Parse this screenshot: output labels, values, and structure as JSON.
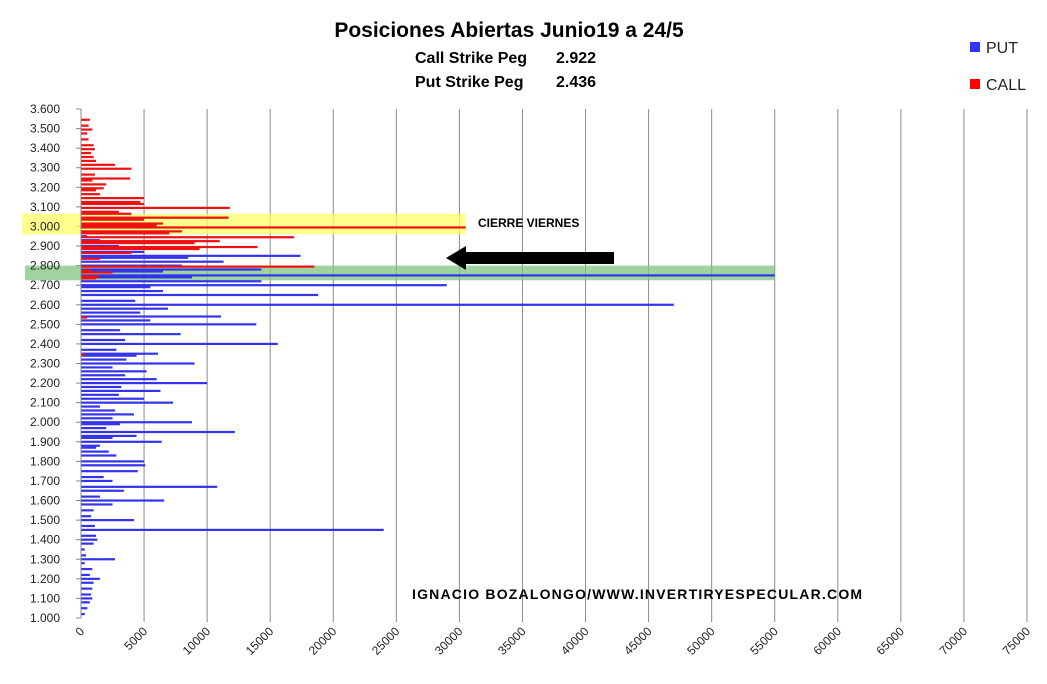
{
  "chart_data": {
    "type": "bar",
    "orientation": "horizontal",
    "title": "Posiciones Abiertas Junio19 a 24/5",
    "subtitle_lines": [
      {
        "label": "Call Strike Peg",
        "value": "2.922"
      },
      {
        "label": "Put Strike Peg",
        "value": "2.436"
      }
    ],
    "legend": {
      "position": "top-right",
      "entries": [
        {
          "name": "PUT",
          "color": "#3333ff"
        },
        {
          "name": "CALL",
          "color": "#ff0000"
        }
      ]
    },
    "ylim": [
      1.0,
      3.6
    ],
    "xlim": [
      0,
      75000
    ],
    "y_ticks": [
      "1.000",
      "1.100",
      "1.200",
      "1.300",
      "1.400",
      "1.500",
      "1.600",
      "1.700",
      "1.800",
      "1.900",
      "2.000",
      "2.100",
      "2.200",
      "2.300",
      "2.400",
      "2.500",
      "2.600",
      "2.700",
      "2.800",
      "2.900",
      "3.000",
      "3.100",
      "3.200",
      "3.300",
      "3.400",
      "3.500",
      "3.600"
    ],
    "x_ticks": [
      0,
      5000,
      10000,
      15000,
      20000,
      25000,
      30000,
      35000,
      40000,
      45000,
      50000,
      55000,
      60000,
      65000,
      70000,
      75000
    ],
    "grid": "vertical",
    "series_fields": [
      "strike",
      "put",
      "call"
    ],
    "data": [
      [
        1.02,
        300,
        0
      ],
      [
        1.05,
        500,
        0
      ],
      [
        1.08,
        700,
        0
      ],
      [
        1.1,
        900,
        0
      ],
      [
        1.12,
        800,
        0
      ],
      [
        1.15,
        900,
        0
      ],
      [
        1.18,
        1000,
        0
      ],
      [
        1.2,
        1500,
        0
      ],
      [
        1.22,
        700,
        0
      ],
      [
        1.25,
        900,
        0
      ],
      [
        1.28,
        300,
        0
      ],
      [
        1.3,
        2700,
        0
      ],
      [
        1.32,
        400,
        0
      ],
      [
        1.35,
        300,
        0
      ],
      [
        1.38,
        1000,
        0
      ],
      [
        1.4,
        1300,
        0
      ],
      [
        1.42,
        1200,
        0
      ],
      [
        1.45,
        24000,
        0
      ],
      [
        1.47,
        1100,
        0
      ],
      [
        1.5,
        4200,
        0
      ],
      [
        1.52,
        800,
        0
      ],
      [
        1.55,
        1000,
        0
      ],
      [
        1.58,
        2500,
        0
      ],
      [
        1.6,
        6600,
        0
      ],
      [
        1.62,
        1500,
        0
      ],
      [
        1.65,
        3400,
        0
      ],
      [
        1.67,
        10800,
        0
      ],
      [
        1.7,
        2500,
        0
      ],
      [
        1.72,
        1800,
        0
      ],
      [
        1.75,
        4500,
        0
      ],
      [
        1.78,
        5100,
        0
      ],
      [
        1.8,
        5000,
        0
      ],
      [
        1.83,
        2800,
        0
      ],
      [
        1.85,
        2200,
        0
      ],
      [
        1.87,
        1200,
        0
      ],
      [
        1.88,
        1500,
        0
      ],
      [
        1.9,
        6400,
        0
      ],
      [
        1.92,
        2500,
        0
      ],
      [
        1.93,
        4400,
        0
      ],
      [
        1.95,
        12200,
        0
      ],
      [
        1.97,
        2000,
        0
      ],
      [
        1.99,
        3100,
        0
      ],
      [
        2.0,
        8800,
        0
      ],
      [
        2.02,
        2500,
        0
      ],
      [
        2.04,
        4200,
        0
      ],
      [
        2.06,
        2700,
        0
      ],
      [
        2.08,
        1500,
        0
      ],
      [
        2.1,
        7300,
        0
      ],
      [
        2.12,
        5000,
        0
      ],
      [
        2.14,
        3000,
        0
      ],
      [
        2.16,
        6300,
        0
      ],
      [
        2.18,
        3200,
        0
      ],
      [
        2.2,
        10000,
        0
      ],
      [
        2.22,
        6000,
        0
      ],
      [
        2.24,
        3500,
        0
      ],
      [
        2.26,
        5200,
        0
      ],
      [
        2.28,
        2500,
        0
      ],
      [
        2.3,
        9000,
        0
      ],
      [
        2.32,
        3600,
        0
      ],
      [
        2.34,
        4400,
        0
      ],
      [
        2.35,
        6100,
        300
      ],
      [
        2.37,
        2800,
        0
      ],
      [
        2.4,
        15600,
        0
      ],
      [
        2.42,
        3500,
        0
      ],
      [
        2.45,
        7900,
        0
      ],
      [
        2.47,
        3100,
        0
      ],
      [
        2.5,
        13900,
        0
      ],
      [
        2.52,
        5500,
        0
      ],
      [
        2.54,
        11100,
        500
      ],
      [
        2.56,
        4700,
        0
      ],
      [
        2.58,
        6900,
        0
      ],
      [
        2.6,
        47000,
        0
      ],
      [
        2.62,
        4300,
        0
      ],
      [
        2.65,
        18800,
        0
      ],
      [
        2.67,
        6500,
        0
      ],
      [
        2.69,
        5500,
        0
      ],
      [
        2.7,
        29000,
        0
      ],
      [
        2.72,
        14300,
        0
      ],
      [
        2.74,
        8800,
        1200
      ],
      [
        2.75,
        55000,
        1500
      ],
      [
        2.77,
        6500,
        2500
      ],
      [
        2.78,
        14300,
        800
      ],
      [
        2.8,
        8000,
        18500
      ],
      [
        2.82,
        11300,
        0
      ],
      [
        2.84,
        8500,
        1500
      ],
      [
        2.85,
        17400,
        0
      ],
      [
        2.87,
        5000,
        4000
      ],
      [
        2.89,
        5000,
        9400
      ],
      [
        2.9,
        3000,
        14000
      ],
      [
        2.92,
        2000,
        9000
      ],
      [
        2.93,
        1500,
        11000
      ],
      [
        2.95,
        500,
        16900
      ],
      [
        2.97,
        0,
        7000
      ],
      [
        2.98,
        0,
        8000
      ],
      [
        3.0,
        0,
        30500
      ],
      [
        3.01,
        0,
        6000
      ],
      [
        3.02,
        0,
        6500
      ],
      [
        3.04,
        0,
        5000
      ],
      [
        3.05,
        0,
        11700
      ],
      [
        3.07,
        0,
        4000
      ],
      [
        3.08,
        0,
        3000
      ],
      [
        3.1,
        0,
        11800
      ],
      [
        3.12,
        0,
        5000
      ],
      [
        3.13,
        0,
        4700
      ],
      [
        3.15,
        0,
        5000
      ],
      [
        3.17,
        0,
        1500
      ],
      [
        3.19,
        0,
        1200
      ],
      [
        3.2,
        0,
        1800
      ],
      [
        3.22,
        0,
        2000
      ],
      [
        3.24,
        0,
        900
      ],
      [
        3.25,
        0,
        3900
      ],
      [
        3.27,
        0,
        1100
      ],
      [
        3.3,
        0,
        4000
      ],
      [
        3.32,
        0,
        2700
      ],
      [
        3.34,
        0,
        1200
      ],
      [
        3.36,
        0,
        1000
      ],
      [
        3.38,
        0,
        800
      ],
      [
        3.4,
        0,
        1100
      ],
      [
        3.42,
        0,
        1000
      ],
      [
        3.45,
        0,
        600
      ],
      [
        3.48,
        0,
        500
      ],
      [
        3.5,
        0,
        900
      ],
      [
        3.52,
        0,
        600
      ],
      [
        3.55,
        0,
        700
      ]
    ],
    "highlights": [
      {
        "color": "#ffff66",
        "from": 2.96,
        "to": 3.065,
        "xmax": 30500
      },
      {
        "color": "#7fc47f",
        "from": 2.725,
        "to": 2.8,
        "xmax": 55000
      }
    ],
    "annotations": {
      "arrow_label": "CIERRE VIERNES",
      "watermark": "IGNACIO BOZALONGO/WWW.INVERTIRYESPECULAR.COM"
    }
  }
}
